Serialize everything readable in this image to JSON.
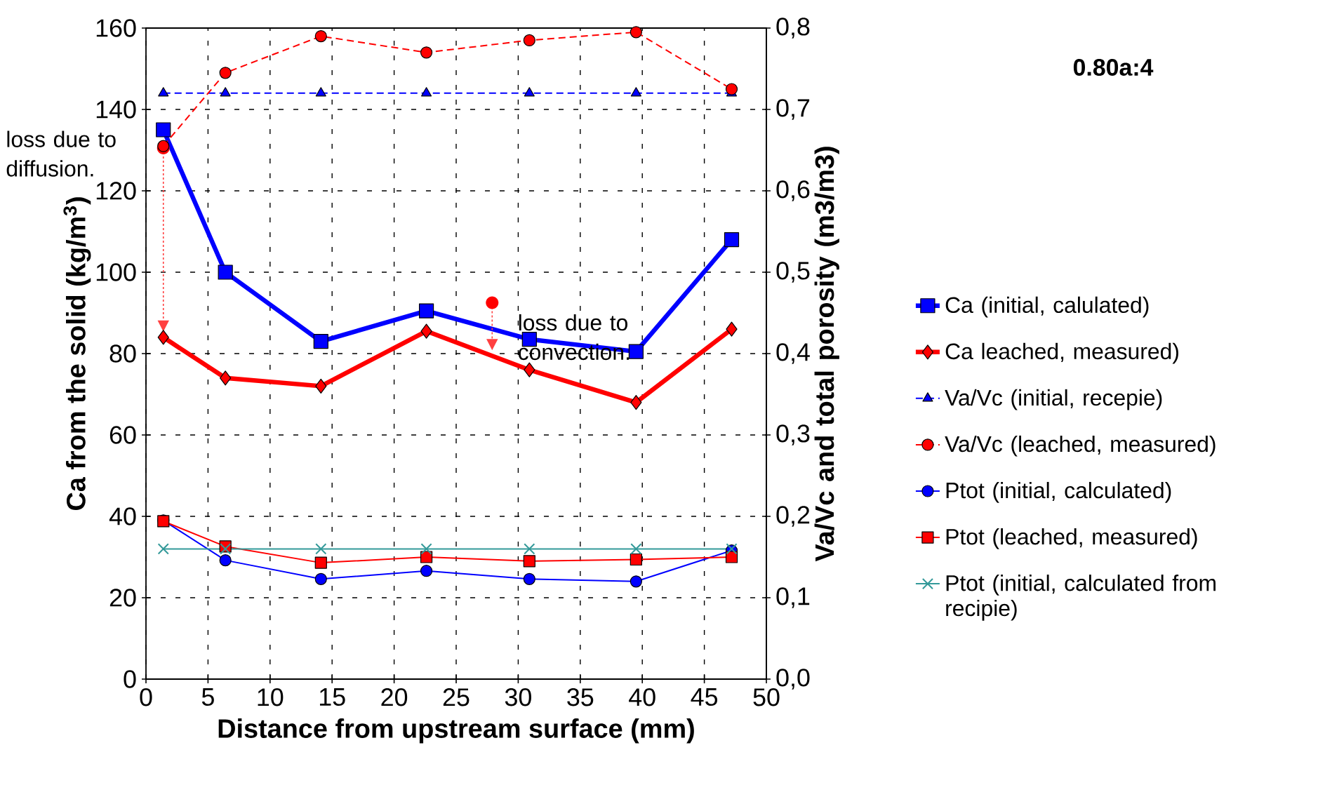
{
  "chart_data": {
    "type": "line",
    "title": "0.80a:4",
    "xlabel": "Distance from upstream surface (mm)",
    "ylabel": "Ca from the solid (kg/m$^{3}$)",
    "y2label": "Va/Vc and total porosity (m3/m3)",
    "x": [
      1.4,
      6.4,
      14.1,
      22.6,
      30.9,
      39.5,
      47.2
    ],
    "series": [
      {
        "name": "Ca (initial, calulated)",
        "color": "#0000ff",
        "marker": "square",
        "line_style": "solid",
        "values": [
          135,
          100,
          83,
          90.5,
          83.5,
          80.5,
          108
        ]
      },
      {
        "name": "Ca leached, measured)",
        "color": "#ff0000",
        "marker": "diamond",
        "line_style": "solid",
        "values": [
          84,
          74,
          72,
          85.5,
          76,
          68,
          86
        ]
      },
      {
        "name": "Va/Vc (initial, recepie)",
        "color": "#0000ff",
        "marker": "triangle",
        "line_style": "dashed",
        "axis": "y2",
        "values": [
          0.72,
          0.72,
          0.72,
          0.72,
          0.72,
          0.72,
          0.72
        ]
      },
      {
        "name": "Va/Vc (leached, measured)",
        "color": "#ff0000",
        "marker": "circle",
        "line_style": "dashed",
        "axis": "y2",
        "values": [
          0.655,
          0.745,
          0.79,
          0.77,
          0.785,
          0.795,
          0.725
        ]
      },
      {
        "name": "Ptot (initial, calculated)",
        "color": "#0000ff",
        "marker": "circle",
        "line_style": "solid",
        "axis": "y2",
        "values": [
          0.195,
          0.146,
          0.123,
          0.133,
          0.123,
          0.12,
          0.158
        ]
      },
      {
        "name": "Ptot (leached, measured)",
        "color": "#ff0000",
        "marker": "square",
        "line_style": "solid",
        "axis": "y2",
        "values": [
          0.194,
          0.163,
          0.143,
          0.15,
          0.145,
          0.147,
          0.15
        ]
      },
      {
        "name": "Ptot (initial, calculated from recipie)",
        "color": "#339999",
        "marker": "cross",
        "line_style": "solid",
        "axis": "y2",
        "values": [
          0.16,
          0.16,
          0.16,
          0.16,
          0.16,
          0.16,
          0.16
        ]
      }
    ],
    "xlim": [
      0,
      50
    ],
    "xticks": [
      0,
      5,
      10,
      15,
      20,
      25,
      30,
      35,
      40,
      45,
      50
    ],
    "ylim": [
      0,
      160
    ],
    "yticks": [
      0,
      20,
      40,
      60,
      80,
      100,
      120,
      140,
      160
    ],
    "y2lim": [
      0,
      0.8
    ],
    "y2ticks": [
      {
        "value": 0,
        "label": "0,0"
      },
      {
        "value": 0.1,
        "label": "0,1"
      },
      {
        "value": 0.2,
        "label": "0,2"
      },
      {
        "value": 0.3,
        "label": "0,3"
      },
      {
        "value": 0.4,
        "label": "0,4"
      },
      {
        "value": 0.5,
        "label": "0,5"
      },
      {
        "value": 0.6,
        "label": "0,6"
      },
      {
        "value": 0.7,
        "label": "0,7"
      },
      {
        "value": 0.8,
        "label": "0,8"
      }
    ],
    "annotations": [
      {
        "text": "loss due to diffusion.",
        "x": 1.4,
        "y": 130.5
      },
      {
        "text": "loss due to convection.",
        "x": 27.9,
        "y": 92.5
      }
    ],
    "grid": true,
    "legend": "right"
  }
}
